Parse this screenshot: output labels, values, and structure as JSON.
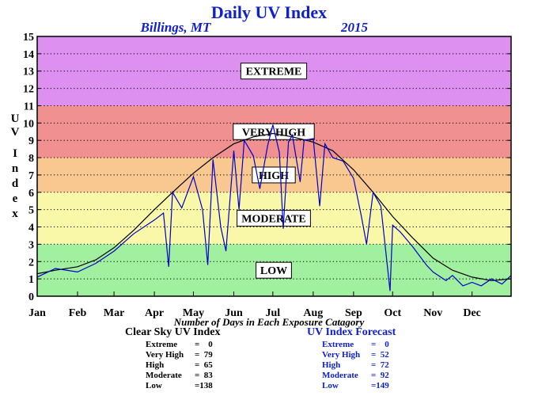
{
  "title": "Daily UV Index",
  "subtitle_location": "Billings, MT",
  "subtitle_year": "2015",
  "colors": {
    "extreme": "#dd90f0",
    "very_high": "#f09090",
    "high": "#f8c890",
    "moderate": "#f8f8a8",
    "low": "#a0f0a0",
    "forecast_line": "#0000cc",
    "clear_sky_line": "#000000",
    "title_blue": "#1020d0"
  },
  "chart_data": {
    "type": "line",
    "title": "Daily UV Index",
    "ylabel": "UV Index",
    "xlabel": "",
    "note": "Number of Days in Each Exposure Catagory",
    "ylim": [
      0,
      15
    ],
    "yticks": [
      0,
      1,
      2,
      3,
      4,
      5,
      6,
      7,
      8,
      9,
      10,
      11,
      12,
      13,
      14,
      15
    ],
    "month_labels": [
      "Jan",
      "Feb",
      "Mar",
      "Apr",
      "May",
      "Jun",
      "Jul",
      "Aug",
      "Sep",
      "Oct",
      "Nov",
      "Dec"
    ],
    "month_start_days": [
      1,
      32,
      60,
      91,
      121,
      152,
      182,
      213,
      244,
      274,
      305,
      335
    ],
    "xlim_days": [
      1,
      365
    ],
    "categories": [
      {
        "label": "LOW",
        "range": [
          0,
          3
        ]
      },
      {
        "label": "MODERATE",
        "range": [
          3,
          6
        ]
      },
      {
        "label": "HIGH",
        "range": [
          6,
          8
        ]
      },
      {
        "label": "VERY HIGH",
        "range": [
          8,
          11
        ]
      },
      {
        "label": "EXTREME",
        "range": [
          11,
          15
        ]
      }
    ],
    "series": [
      {
        "name": "Clear Sky UV Index",
        "x": [
          1,
          15,
          32,
          46,
          60,
          75,
          91,
          105,
          121,
          136,
          152,
          167,
          182,
          197,
          213,
          228,
          244,
          259,
          274,
          289,
          305,
          320,
          335,
          350,
          365
        ],
        "y": [
          1.3,
          1.5,
          1.7,
          2.1,
          2.8,
          3.8,
          5.0,
          6.0,
          7.1,
          8.0,
          8.8,
          9.2,
          9.4,
          9.2,
          8.9,
          8.4,
          7.3,
          6.0,
          4.6,
          3.4,
          2.2,
          1.5,
          1.1,
          0.9,
          1.0
        ]
      },
      {
        "name": "UV Index Forecast",
        "x": [
          1,
          15,
          32,
          46,
          60,
          75,
          91,
          98,
          102,
          105,
          112,
          121,
          128,
          132,
          136,
          142,
          146,
          152,
          156,
          160,
          167,
          172,
          178,
          182,
          187,
          190,
          194,
          197,
          203,
          206,
          213,
          218,
          222,
          228,
          236,
          244,
          250,
          254,
          259,
          265,
          270,
          272,
          274,
          280,
          289,
          300,
          305,
          315,
          320,
          328,
          335,
          342,
          350,
          358,
          365
        ],
        "y": [
          1.1,
          1.6,
          1.4,
          1.9,
          2.6,
          3.6,
          4.4,
          4.8,
          1.7,
          6.0,
          5.1,
          6.9,
          5.0,
          1.8,
          7.9,
          4.0,
          2.6,
          8.4,
          5.0,
          9.0,
          8.1,
          6.2,
          8.7,
          9.9,
          8.3,
          3.9,
          8.9,
          9.3,
          6.6,
          9.0,
          9.1,
          5.2,
          8.8,
          8.0,
          7.8,
          6.8,
          4.6,
          3.0,
          6.0,
          5.2,
          1.7,
          0.3,
          4.1,
          3.7,
          2.9,
          1.8,
          1.4,
          0.9,
          1.2,
          0.6,
          0.8,
          0.6,
          1.0,
          0.7,
          1.2
        ]
      }
    ]
  },
  "tables": {
    "clear_sky": {
      "title": "Clear Sky UV Index",
      "rows": [
        {
          "label": "Extreme",
          "value": "=    0"
        },
        {
          "label": "Very High",
          "value": "=  79"
        },
        {
          "label": "High",
          "value": "=  65"
        },
        {
          "label": "Moderate",
          "value": "=  83"
        },
        {
          "label": "Low",
          "value": "=138"
        }
      ]
    },
    "forecast": {
      "title": "UV Index Forecast",
      "rows": [
        {
          "label": "Extreme",
          "value": "=    0"
        },
        {
          "label": "Very High",
          "value": "=  52"
        },
        {
          "label": "High",
          "value": "=  72"
        },
        {
          "label": "Moderate",
          "value": "=  92"
        },
        {
          "label": "Low",
          "value": "=149"
        }
      ]
    }
  }
}
